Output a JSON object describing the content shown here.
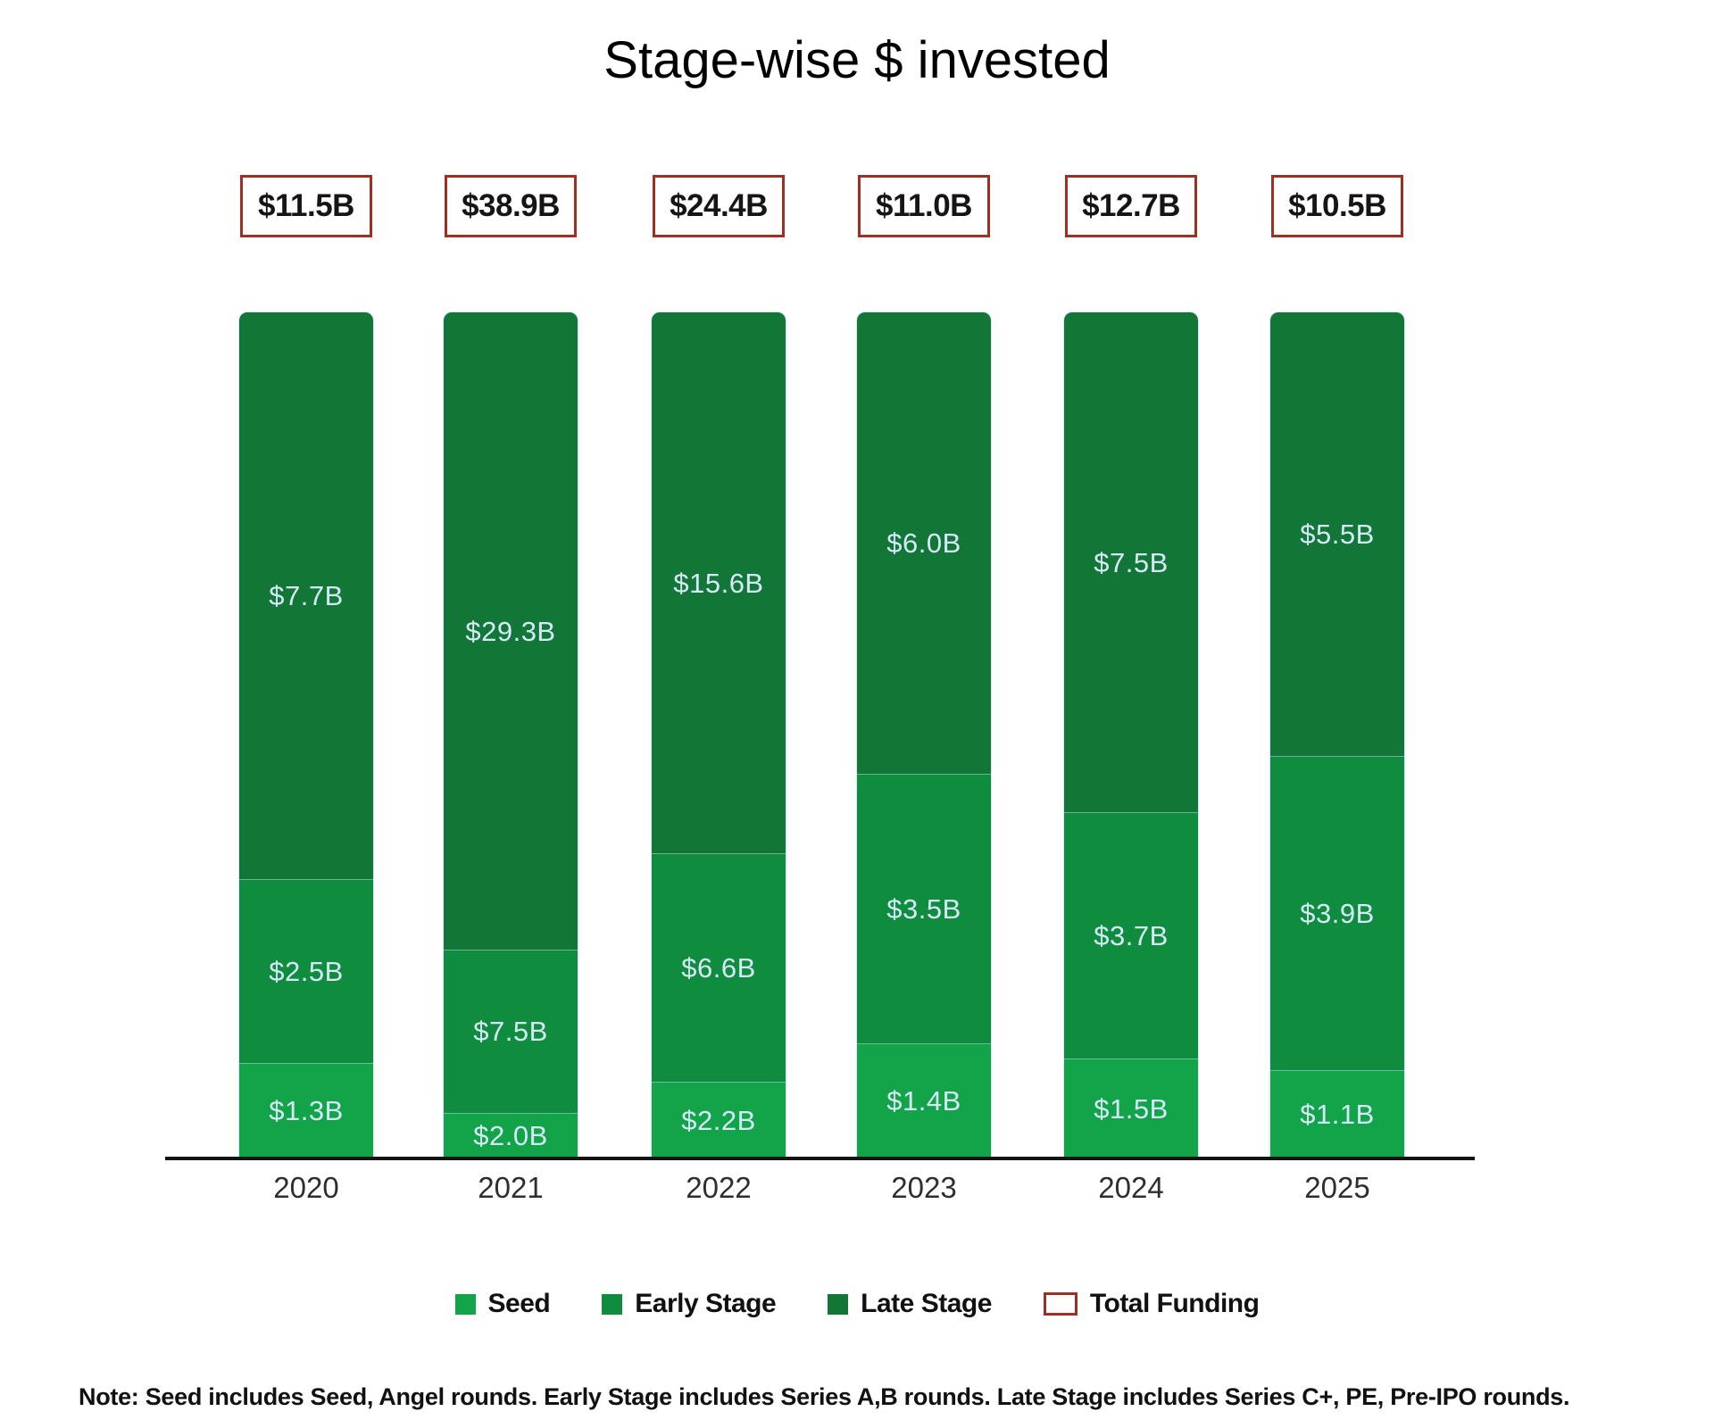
{
  "title": "Stage-wise $ invested",
  "note": "Note: Seed includes Seed, Angel rounds. Early Stage includes Series A,B rounds. Late Stage includes Series C+, PE, Pre-IPO rounds.",
  "colors": {
    "seed": "#13a349",
    "early_stage": "#0f8c3d",
    "late_stage": "#117636",
    "total_outline": "#9e2f23",
    "value_label": "#d6e9f8",
    "axis_line": "#141414"
  },
  "legend": {
    "items": [
      {
        "label": "Seed",
        "swatch": "fill",
        "color_key": "seed"
      },
      {
        "label": "Early Stage",
        "swatch": "fill",
        "color_key": "early_stage"
      },
      {
        "label": "Late Stage",
        "swatch": "fill",
        "color_key": "late_stage"
      },
      {
        "label": "Total Funding",
        "swatch": "outline",
        "color_key": "total_outline"
      }
    ]
  },
  "chart_data": {
    "type": "bar",
    "variant": "100%-stacked-column",
    "unit": "USD billions",
    "grid": false,
    "legend_position": "bottom",
    "categories": [
      "2020",
      "2021",
      "2022",
      "2023",
      "2024",
      "2025"
    ],
    "series": [
      {
        "name": "Seed",
        "color_key": "seed",
        "values": [
          1.3,
          2.0,
          2.2,
          1.4,
          1.5,
          1.1
        ],
        "labels": [
          "$1.3B",
          "$2.0B",
          "$2.2B",
          "$1.4B",
          "$1.5B",
          "$1.1B"
        ]
      },
      {
        "name": "Early Stage",
        "color_key": "early_stage",
        "values": [
          2.5,
          7.5,
          6.6,
          3.5,
          3.7,
          3.9
        ],
        "labels": [
          "$2.5B",
          "$7.5B",
          "$6.6B",
          "$3.5B",
          "$3.7B",
          "$3.9B"
        ]
      },
      {
        "name": "Late Stage",
        "color_key": "late_stage",
        "values": [
          7.7,
          29.3,
          15.6,
          6.0,
          7.5,
          5.5
        ],
        "labels": [
          "$7.7B",
          "$29.3B",
          "$15.6B",
          "$6.0B",
          "$7.5B",
          "$5.5B"
        ]
      }
    ],
    "totals": {
      "name": "Total Funding",
      "values": [
        11.5,
        38.9,
        24.4,
        11.0,
        12.7,
        10.5
      ],
      "labels": [
        "$11.5B",
        "$38.9B",
        "$24.4B",
        "$11.0B",
        "$12.7B",
        "$10.5B"
      ]
    }
  }
}
